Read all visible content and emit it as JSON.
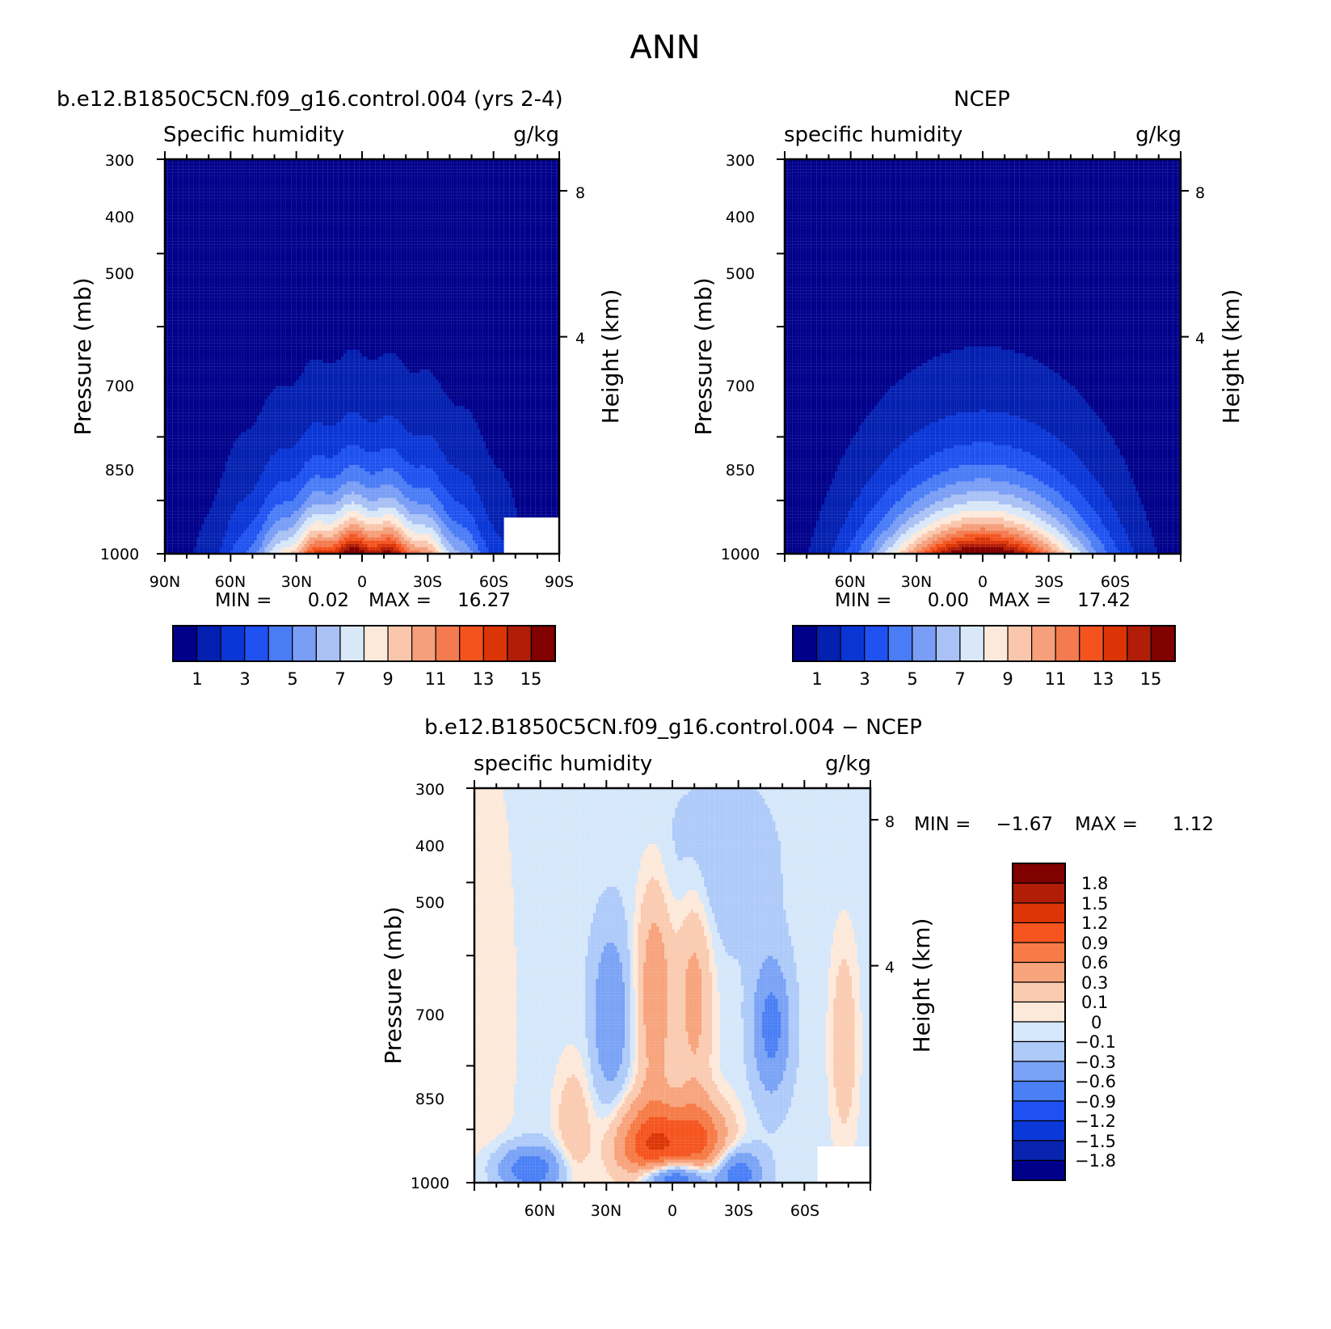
{
  "figure": {
    "title": "ANN"
  },
  "palettes": {
    "abs": [
      "#00008b",
      "#0420b0",
      "#0a36d6",
      "#1f52f0",
      "#4a7cf6",
      "#7a9ef5",
      "#a9c1f5",
      "#d8e8f9",
      "#fde9da",
      "#fac6ac",
      "#f59f7c",
      "#f47a4f",
      "#f4531e",
      "#db3406",
      "#b21d08",
      "#810000"
    ],
    "diff": [
      "#00008b",
      "#0a24b0",
      "#0b38d8",
      "#1f50f2",
      "#4a7ff5",
      "#7aa3f5",
      "#aecaf9",
      "#d5e7fa",
      "#fde9da",
      "#facbb1",
      "#f7a37c",
      "#f67b46",
      "#f5541f",
      "#dc3506",
      "#b21d08",
      "#810000"
    ]
  },
  "chart_data": [
    {
      "id": "model",
      "type": "heatmap",
      "title": "b.e12.B1850C5CN.f09_g16.control.004 (yrs 2-4)",
      "left_label": "Specific humidity",
      "right_label": "g/kg",
      "ylabel": "Pressure (mb)",
      "ylabel2": "Height (km)",
      "yticks": [
        "300",
        "400",
        "500",
        "700",
        "850",
        "1000"
      ],
      "y2ticks": [
        "8",
        "4"
      ],
      "xticks": [
        "90N",
        "60N",
        "30N",
        "0",
        "30S",
        "60S",
        "90S"
      ],
      "stats": {
        "min_label": "MIN =",
        "min": "0.02",
        "max_label": "MAX =",
        "max": "16.27"
      },
      "colorbar": {
        "orientation": "horizontal",
        "labels": [
          "1",
          "3",
          "5",
          "7",
          "9",
          "11",
          "13",
          "15"
        ]
      },
      "peak": 16.27,
      "width_scale": 1.0
    },
    {
      "id": "ncep",
      "type": "heatmap",
      "title": "NCEP",
      "left_label": "specific humidity",
      "right_label": "g/kg",
      "ylabel": "Pressure (mb)",
      "ylabel2": "Height (km)",
      "yticks": [
        "300",
        "400",
        "500",
        "700",
        "850",
        "1000"
      ],
      "y2ticks": [
        "8",
        "4"
      ],
      "xticks": [
        "60N",
        "30N",
        "0",
        "30S",
        "60S"
      ],
      "stats": {
        "min_label": "MIN =",
        "min": "0.00",
        "max_label": "MAX =",
        "max": "17.42"
      },
      "colorbar": {
        "orientation": "horizontal",
        "labels": [
          "1",
          "3",
          "5",
          "7",
          "9",
          "11",
          "13",
          "15"
        ]
      },
      "peak": 17.42,
      "width_scale": 1.03
    },
    {
      "id": "diff",
      "type": "heatmap",
      "title": "b.e12.B1850C5CN.f09_g16.control.004 − NCEP",
      "left_label": "specific humidity",
      "right_label": "g/kg",
      "ylabel": "Pressure (mb)",
      "ylabel2": "Height (km)",
      "yticks": [
        "300",
        "400",
        "500",
        "700",
        "850",
        "1000"
      ],
      "y2ticks": [
        "8",
        "4"
      ],
      "xticks": [
        "60N",
        "30N",
        "0",
        "30S",
        "60S"
      ],
      "stats": {
        "min_label": "MIN =",
        "min": "−1.67",
        "max_label": "MAX =",
        "max": "1.12"
      },
      "colorbar": {
        "orientation": "vertical",
        "labels": [
          "1.8",
          "1.5",
          "1.2",
          "0.9",
          "0.6",
          "0.3",
          "0.1",
          "0",
          "−0.1",
          "−0.3",
          "−0.6",
          "−0.9",
          "−1.2",
          "−1.5",
          "−1.8"
        ]
      }
    }
  ]
}
